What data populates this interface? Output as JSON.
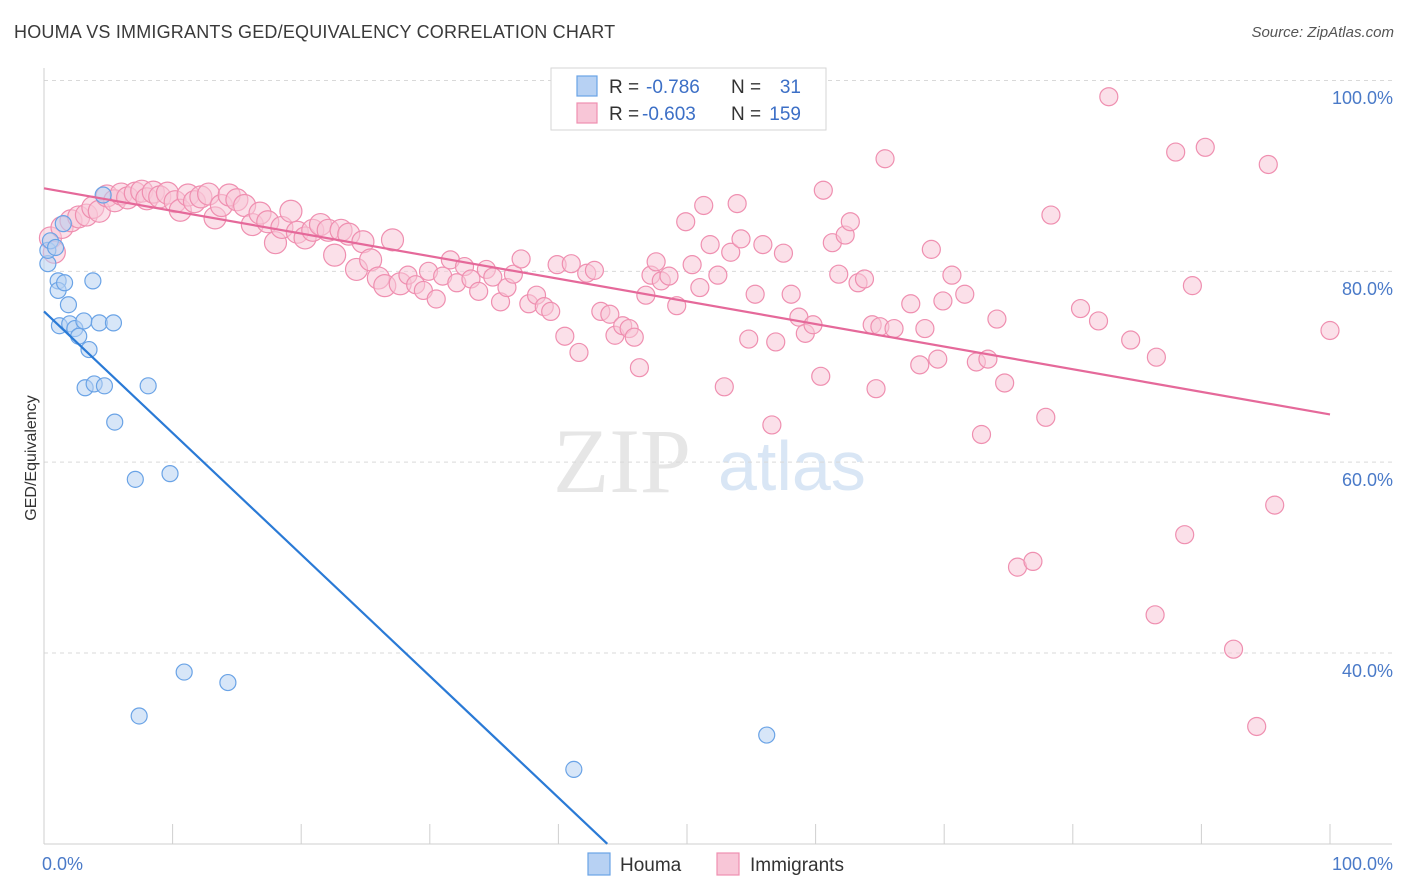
{
  "title": "HOUMA VS IMMIGRANTS GED/EQUIVALENCY CORRELATION CHART",
  "source": "Source: ZipAtlas.com",
  "watermark": {
    "zip": "ZIP",
    "atlas": "atlas"
  },
  "colors": {
    "houma": "#6aa3e6",
    "houma_fill": "#b7d1f3",
    "houma_line": "#2a7ad6",
    "immigrants": "#ef8fb0",
    "immigrants_fill": "#f8c6d7",
    "immigrants_line": "#e5699a",
    "tick_label": "#4a7ac8",
    "grid": "#d9d9d9"
  },
  "legend": {
    "rows": [
      {
        "r_label": "R =",
        "r_value": "-0.786",
        "n_label": "N =",
        "n_value": "31"
      },
      {
        "r_label": "R =",
        "r_value": "-0.603",
        "n_label": "N =",
        "n_value": "159"
      }
    ]
  },
  "bottom_legend": [
    "Houma",
    "Immigrants"
  ],
  "chart_data": {
    "type": "scatter",
    "title": "HOUMA VS IMMIGRANTS GED/EQUIVALENCY CORRELATION CHART",
    "xlabel": "",
    "ylabel": "GED/Equivalency",
    "x_tick_labels": [
      "0.0%",
      "100.0%"
    ],
    "y_tick_labels": [
      "100.0%",
      "80.0%",
      "60.0%",
      "40.0%"
    ],
    "xlim": [
      0,
      100
    ],
    "ylim": [
      20,
      102
    ],
    "grid": true,
    "legend_position": "top-center",
    "series": [
      {
        "name": "Houma",
        "trend": [
          [
            0,
            75.8
          ],
          [
            43.8,
            20
          ]
        ],
        "points": [
          [
            0.3,
            80.8
          ],
          [
            0.3,
            82.2
          ],
          [
            0.5,
            83.2
          ],
          [
            1.1,
            79.0
          ],
          [
            1.1,
            78.0
          ],
          [
            1.5,
            85.0
          ],
          [
            1.6,
            78.8
          ],
          [
            1.9,
            76.5
          ],
          [
            1.2,
            74.3
          ],
          [
            2.0,
            74.5
          ],
          [
            2.4,
            74.0
          ],
          [
            2.7,
            73.2
          ],
          [
            3.1,
            74.8
          ],
          [
            3.5,
            71.8
          ],
          [
            3.2,
            67.8
          ],
          [
            3.8,
            79.0
          ],
          [
            3.9,
            68.2
          ],
          [
            4.3,
            74.6
          ],
          [
            4.6,
            88.0
          ],
          [
            4.7,
            68.0
          ],
          [
            5.4,
            74.6
          ],
          [
            5.5,
            64.2
          ],
          [
            7.1,
            58.2
          ],
          [
            8.1,
            68.0
          ],
          [
            9.8,
            58.8
          ],
          [
            10.9,
            38.0
          ],
          [
            14.3,
            36.9
          ],
          [
            7.4,
            33.4
          ],
          [
            56.2,
            31.4
          ],
          [
            41.2,
            27.8
          ],
          [
            0.9,
            82.5
          ]
        ]
      },
      {
        "name": "Immigrants",
        "trend": [
          [
            0,
            88.7
          ],
          [
            100,
            65.0
          ]
        ],
        "points": [
          [
            0.5,
            83.5
          ],
          [
            0.8,
            82.0
          ],
          [
            1.4,
            84.6
          ],
          [
            2.1,
            85.3
          ],
          [
            2.7,
            85.7
          ],
          [
            3.3,
            85.9
          ],
          [
            3.8,
            86.7
          ],
          [
            4.3,
            86.3
          ],
          [
            4.9,
            87.9
          ],
          [
            5.5,
            87.4
          ],
          [
            6.0,
            88.1
          ],
          [
            6.5,
            87.7
          ],
          [
            7.1,
            88.2
          ],
          [
            7.6,
            88.4
          ],
          [
            8.0,
            87.6
          ],
          [
            8.5,
            88.3
          ],
          [
            9.0,
            87.8
          ],
          [
            9.6,
            88.2
          ],
          [
            10.2,
            87.3
          ],
          [
            10.6,
            86.4
          ],
          [
            11.2,
            88.0
          ],
          [
            11.7,
            87.3
          ],
          [
            12.2,
            87.8
          ],
          [
            12.8,
            88.1
          ],
          [
            13.3,
            85.6
          ],
          [
            13.8,
            86.9
          ],
          [
            14.4,
            88.0
          ],
          [
            15.0,
            87.5
          ],
          [
            15.6,
            86.9
          ],
          [
            16.2,
            84.9
          ],
          [
            16.8,
            86.1
          ],
          [
            17.4,
            85.2
          ],
          [
            18.0,
            83.0
          ],
          [
            18.5,
            84.6
          ],
          [
            19.2,
            86.3
          ],
          [
            19.7,
            84.1
          ],
          [
            20.3,
            83.5
          ],
          [
            20.9,
            84.3
          ],
          [
            21.5,
            84.9
          ],
          [
            22.1,
            84.3
          ],
          [
            22.6,
            81.7
          ],
          [
            23.1,
            84.3
          ],
          [
            23.7,
            83.9
          ],
          [
            24.3,
            80.2
          ],
          [
            24.8,
            83.1
          ],
          [
            25.4,
            81.2
          ],
          [
            26.0,
            79.3
          ],
          [
            26.5,
            78.5
          ],
          [
            27.1,
            83.3
          ],
          [
            27.7,
            78.7
          ],
          [
            28.3,
            79.6
          ],
          [
            28.9,
            78.6
          ],
          [
            29.5,
            78.0
          ],
          [
            29.9,
            80.0
          ],
          [
            30.5,
            77.1
          ],
          [
            31.0,
            79.5
          ],
          [
            31.6,
            81.2
          ],
          [
            32.1,
            78.8
          ],
          [
            32.7,
            80.5
          ],
          [
            33.2,
            79.2
          ],
          [
            33.8,
            77.9
          ],
          [
            34.4,
            80.2
          ],
          [
            34.9,
            79.4
          ],
          [
            35.5,
            76.8
          ],
          [
            36.0,
            78.3
          ],
          [
            36.5,
            79.7
          ],
          [
            37.1,
            81.3
          ],
          [
            37.7,
            76.6
          ],
          [
            38.3,
            77.5
          ],
          [
            38.9,
            76.3
          ],
          [
            39.4,
            75.8
          ],
          [
            39.9,
            80.7
          ],
          [
            40.5,
            73.2
          ],
          [
            41.0,
            80.8
          ],
          [
            41.6,
            71.5
          ],
          [
            42.2,
            79.8
          ],
          [
            42.8,
            80.1
          ],
          [
            43.3,
            75.8
          ],
          [
            44.0,
            75.5
          ],
          [
            44.4,
            73.3
          ],
          [
            45.0,
            74.3
          ],
          [
            45.5,
            74.0
          ],
          [
            45.9,
            73.1
          ],
          [
            46.3,
            69.9
          ],
          [
            46.8,
            77.5
          ],
          [
            47.2,
            79.6
          ],
          [
            47.6,
            81.0
          ],
          [
            48.0,
            79.0
          ],
          [
            48.6,
            79.5
          ],
          [
            49.2,
            76.4
          ],
          [
            49.9,
            85.2
          ],
          [
            50.4,
            80.7
          ],
          [
            51.0,
            78.3
          ],
          [
            51.3,
            86.9
          ],
          [
            51.8,
            82.8
          ],
          [
            52.4,
            79.6
          ],
          [
            52.9,
            67.9
          ],
          [
            53.4,
            82.0
          ],
          [
            53.9,
            87.1
          ],
          [
            54.2,
            83.4
          ],
          [
            54.8,
            72.9
          ],
          [
            55.3,
            77.6
          ],
          [
            55.9,
            82.8
          ],
          [
            56.6,
            63.9
          ],
          [
            56.9,
            72.6
          ],
          [
            57.5,
            81.9
          ],
          [
            58.1,
            77.6
          ],
          [
            58.7,
            75.2
          ],
          [
            59.2,
            73.5
          ],
          [
            59.8,
            74.4
          ],
          [
            60.4,
            69.0
          ],
          [
            60.6,
            88.5
          ],
          [
            61.3,
            83.0
          ],
          [
            61.8,
            79.7
          ],
          [
            62.3,
            83.8
          ],
          [
            62.7,
            85.2
          ],
          [
            63.3,
            78.8
          ],
          [
            63.8,
            79.2
          ],
          [
            64.4,
            74.4
          ],
          [
            64.7,
            67.7
          ],
          [
            65.0,
            74.2
          ],
          [
            65.4,
            91.8
          ],
          [
            66.1,
            74.0
          ],
          [
            67.4,
            76.6
          ],
          [
            68.1,
            70.2
          ],
          [
            68.5,
            74.0
          ],
          [
            69.0,
            82.3
          ],
          [
            69.5,
            70.8
          ],
          [
            69.9,
            76.9
          ],
          [
            70.6,
            79.6
          ],
          [
            71.6,
            77.6
          ],
          [
            72.5,
            70.5
          ],
          [
            72.9,
            62.9
          ],
          [
            73.4,
            70.8
          ],
          [
            74.1,
            75.0
          ],
          [
            74.7,
            68.3
          ],
          [
            75.7,
            49.0
          ],
          [
            76.9,
            49.6
          ],
          [
            77.9,
            64.7
          ],
          [
            78.3,
            85.9
          ],
          [
            80.6,
            76.1
          ],
          [
            82.8,
            98.3
          ],
          [
            86.4,
            44.0
          ],
          [
            88.7,
            52.4
          ],
          [
            89.3,
            78.5
          ],
          [
            90.3,
            93.0
          ],
          [
            92.5,
            40.4
          ],
          [
            94.3,
            32.3
          ],
          [
            95.7,
            55.5
          ],
          [
            100.0,
            73.8
          ],
          [
            95.2,
            91.2
          ],
          [
            88.0,
            92.5
          ],
          [
            86.5,
            71.0
          ],
          [
            84.5,
            72.8
          ],
          [
            82.0,
            74.8
          ]
        ]
      }
    ]
  }
}
